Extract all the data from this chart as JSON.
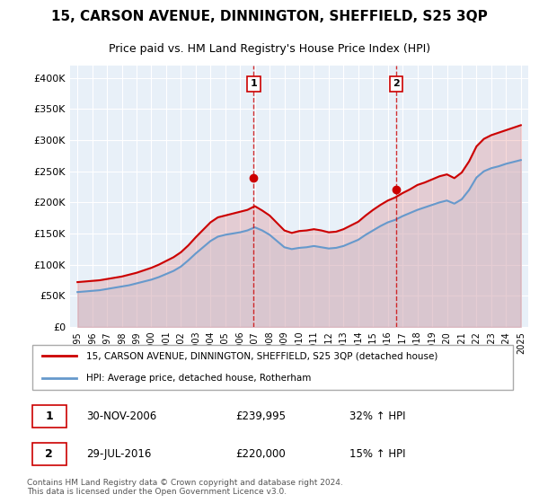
{
  "title": "15, CARSON AVENUE, DINNINGTON, SHEFFIELD, S25 3QP",
  "subtitle": "Price paid vs. HM Land Registry's House Price Index (HPI)",
  "legend_label1": "15, CARSON AVENUE, DINNINGTON, SHEFFIELD, S25 3QP (detached house)",
  "legend_label2": "HPI: Average price, detached house, Rotherham",
  "footnote": "Contains HM Land Registry data © Crown copyright and database right 2024.\nThis data is licensed under the Open Government Licence v3.0.",
  "annotation1_label": "1",
  "annotation1_date": "30-NOV-2006",
  "annotation1_price": "£239,995",
  "annotation1_hpi": "32% ↑ HPI",
  "annotation2_label": "2",
  "annotation2_date": "29-JUL-2016",
  "annotation2_price": "£220,000",
  "annotation2_hpi": "15% ↑ HPI",
  "sale1_x": 2006.92,
  "sale1_y": 239995,
  "sale2_x": 2016.58,
  "sale2_y": 220000,
  "ylim_min": 0,
  "ylim_max": 420000,
  "xlim_min": 1994.5,
  "xlim_max": 2025.5,
  "line1_color": "#cc0000",
  "line2_color": "#6699cc",
  "fill2_color": "#cce0f0",
  "background_color": "#e8f0f8",
  "grid_color": "#ffffff",
  "vline_color": "#cc0000",
  "sale_dot_color": "#cc0000",
  "yticks": [
    0,
    50000,
    100000,
    150000,
    200000,
    250000,
    300000,
    350000,
    400000
  ],
  "ytick_labels": [
    "£0",
    "£50K",
    "£100K",
    "£150K",
    "£200K",
    "£250K",
    "£300K",
    "£350K",
    "£400K"
  ],
  "xticks": [
    1995,
    1996,
    1997,
    1998,
    1999,
    2000,
    2001,
    2002,
    2003,
    2004,
    2005,
    2006,
    2007,
    2008,
    2009,
    2010,
    2011,
    2012,
    2013,
    2014,
    2015,
    2016,
    2017,
    2018,
    2019,
    2020,
    2021,
    2022,
    2023,
    2024,
    2025
  ],
  "hpi_x": [
    1995,
    1995.5,
    1996,
    1996.5,
    1997,
    1997.5,
    1998,
    1998.5,
    1999,
    1999.5,
    2000,
    2000.5,
    2001,
    2001.5,
    2002,
    2002.5,
    2003,
    2003.5,
    2004,
    2004.5,
    2005,
    2005.5,
    2006,
    2006.5,
    2007,
    2007.5,
    2008,
    2008.5,
    2009,
    2009.5,
    2010,
    2010.5,
    2011,
    2011.5,
    2012,
    2012.5,
    2013,
    2013.5,
    2014,
    2014.5,
    2015,
    2015.5,
    2016,
    2016.5,
    2017,
    2017.5,
    2018,
    2018.5,
    2019,
    2019.5,
    2020,
    2020.5,
    2021,
    2021.5,
    2022,
    2022.5,
    2023,
    2023.5,
    2024,
    2024.5,
    2025
  ],
  "hpi_y": [
    56000,
    57000,
    58000,
    59000,
    61000,
    63000,
    65000,
    67000,
    70000,
    73000,
    76000,
    80000,
    85000,
    90000,
    97000,
    107000,
    118000,
    128000,
    138000,
    145000,
    148000,
    150000,
    152000,
    155000,
    160000,
    155000,
    148000,
    138000,
    128000,
    125000,
    127000,
    128000,
    130000,
    128000,
    126000,
    127000,
    130000,
    135000,
    140000,
    148000,
    155000,
    162000,
    168000,
    172000,
    178000,
    183000,
    188000,
    192000,
    196000,
    200000,
    203000,
    198000,
    205000,
    220000,
    240000,
    250000,
    255000,
    258000,
    262000,
    265000,
    268000
  ],
  "price_x": [
    1995,
    1995.5,
    1996,
    1996.5,
    1997,
    1997.5,
    1998,
    1998.5,
    1999,
    1999.5,
    2000,
    2000.5,
    2001,
    2001.5,
    2002,
    2002.5,
    2003,
    2003.5,
    2004,
    2004.5,
    2005,
    2005.5,
    2006,
    2006.5,
    2007,
    2007.5,
    2008,
    2008.5,
    2009,
    2009.5,
    2010,
    2010.5,
    2011,
    2011.5,
    2012,
    2012.5,
    2013,
    2013.5,
    2014,
    2014.5,
    2015,
    2015.5,
    2016,
    2016.5,
    2017,
    2017.5,
    2018,
    2018.5,
    2019,
    2019.5,
    2020,
    2020.5,
    2021,
    2021.5,
    2022,
    2022.5,
    2023,
    2023.5,
    2024,
    2024.5,
    2025
  ],
  "price_y": [
    72000,
    73000,
    74000,
    75000,
    77000,
    79000,
    81000,
    84000,
    87000,
    91000,
    95000,
    100000,
    106000,
    112000,
    120000,
    131000,
    144000,
    156000,
    168000,
    176000,
    179000,
    182000,
    185000,
    188000,
    194000,
    187000,
    179000,
    167000,
    155000,
    151000,
    154000,
    155000,
    157000,
    155000,
    152000,
    153000,
    157000,
    163000,
    169000,
    179000,
    188000,
    196000,
    203000,
    208000,
    215000,
    221000,
    228000,
    232000,
    237000,
    242000,
    245000,
    239000,
    248000,
    266000,
    290000,
    302000,
    308000,
    312000,
    316000,
    320000,
    324000
  ]
}
